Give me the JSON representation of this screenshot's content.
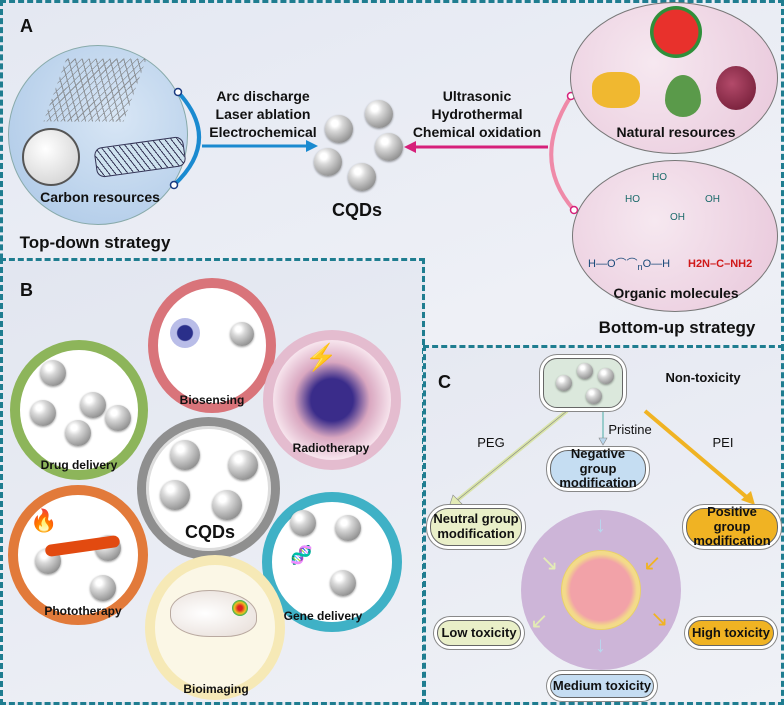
{
  "panel_a": {
    "label": "A",
    "carbon_resources": "Carbon resources",
    "top_down_methods": [
      "Arc discharge",
      "Laser ablation",
      "Electrochemical"
    ],
    "bottom_up_methods": [
      "Ultrasonic",
      "Hydrothermal",
      "Chemical oxidation"
    ],
    "center_label": "CQDs",
    "natural_resources": "Natural resources",
    "organic_molecules": "Organic molecules",
    "top_down_strategy": "Top-down strategy",
    "bottom_up_strategy": "Bottom-up strategy",
    "chem": {
      "ho": "HO",
      "oh": "OH",
      "o": "O",
      "h": "H",
      "n": "n",
      "c": "C",
      "h2n": "H2N",
      "nh2": "NH2"
    }
  },
  "panel_b": {
    "label": "B",
    "center_label": "CQDs",
    "applications": [
      "Biosensing",
      "Drug delivery",
      "Radiotherapy",
      "Phototherapy",
      "Gene delivery",
      "Bioimaging"
    ]
  },
  "panel_c": {
    "label": "C",
    "non_toxicity": "Non-toxicity",
    "pristine": "Pristine",
    "peg": "PEG",
    "pei": "PEI",
    "negative": "Negative group modification",
    "neutral": "Neutral group modification",
    "positive": "Positive group modification",
    "low": "Low toxicity",
    "high": "High toxicity",
    "medium": "Medium toxicity"
  },
  "colors": {
    "frame": "#1f7d90",
    "top_down_arrow": "#1a8ad0",
    "bottom_up_arrow": "#d6207a",
    "positive": "#f0b323",
    "neutral": "#e9efc8",
    "negative": "#c5ddf2"
  }
}
